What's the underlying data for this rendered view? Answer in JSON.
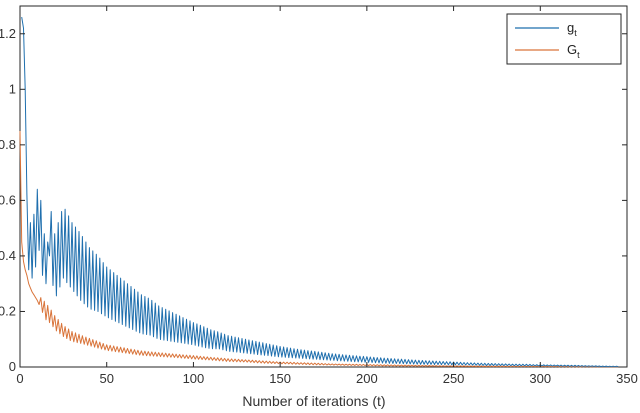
{
  "chart_data": {
    "type": "line",
    "xlabel": "Number of iterations (t)",
    "ylabel": "",
    "title": "",
    "xlim": [
      0,
      350
    ],
    "ylim": [
      0,
      1.3
    ],
    "xticks": [
      "0",
      "50",
      "100",
      "150",
      "200",
      "250",
      "300",
      "350"
    ],
    "yticks": [
      "0",
      "0.2",
      "0.4",
      "0.6",
      "0.8",
      "1",
      "1.2"
    ],
    "grid": false,
    "legend_position": "top-right",
    "series": [
      {
        "name": "g",
        "name_subscript": "t",
        "color": "#1f6fae",
        "x": [
          1,
          2,
          3,
          4,
          5,
          6,
          7,
          8,
          9,
          10,
          11,
          12,
          13,
          14,
          15,
          17,
          20,
          25,
          30,
          35,
          40,
          45,
          50,
          55,
          60,
          65,
          70,
          75,
          80,
          85,
          90,
          95,
          100,
          105,
          110,
          115,
          120,
          130,
          140,
          150,
          160,
          170,
          180,
          190,
          200,
          210,
          220,
          230,
          240,
          250,
          260,
          270,
          280,
          290,
          300,
          310,
          320,
          330,
          340,
          345
        ],
        "y": [
          1.26,
          1.22,
          1.0,
          0.62,
          0.35,
          0.52,
          0.32,
          0.55,
          0.36,
          0.64,
          0.42,
          0.6,
          0.33,
          0.48,
          0.3,
          0.5,
          0.36,
          0.45,
          0.4,
          0.36,
          0.32,
          0.3,
          0.27,
          0.25,
          0.23,
          0.21,
          0.19,
          0.18,
          0.16,
          0.15,
          0.14,
          0.13,
          0.12,
          0.11,
          0.1,
          0.095,
          0.085,
          0.075,
          0.065,
          0.055,
          0.048,
          0.042,
          0.036,
          0.031,
          0.027,
          0.023,
          0.02,
          0.017,
          0.015,
          0.013,
          0.011,
          0.009,
          0.008,
          0.007,
          0.006,
          0.005,
          0.004,
          0.003,
          0.002,
          0.002
        ],
        "osc_amp": [
          0.0,
          0.0,
          0.0,
          0.0,
          0.0,
          0.0,
          0.0,
          0.0,
          0.0,
          0.0,
          0.0,
          0.0,
          0.0,
          0.0,
          0.0,
          0.1,
          0.12,
          0.13,
          0.12,
          0.12,
          0.11,
          0.1,
          0.09,
          0.085,
          0.08,
          0.075,
          0.07,
          0.065,
          0.06,
          0.055,
          0.05,
          0.045,
          0.04,
          0.038,
          0.034,
          0.03,
          0.028,
          0.025,
          0.022,
          0.019,
          0.016,
          0.014,
          0.012,
          0.011,
          0.01,
          0.009,
          0.008,
          0.007,
          0.006,
          0.005,
          0.004,
          0.004,
          0.003,
          0.003,
          0.002,
          0.002,
          0.002,
          0.001,
          0.001,
          0.001
        ]
      },
      {
        "name": "G",
        "name_subscript": "t",
        "color": "#d9743a",
        "x": [
          0,
          1,
          2,
          3,
          4,
          5,
          7,
          10,
          12,
          15,
          18,
          20,
          25,
          30,
          35,
          40,
          45,
          50,
          60,
          70,
          80,
          90,
          100,
          110,
          120,
          130,
          140,
          150,
          160,
          170,
          180,
          200,
          220,
          250,
          280,
          300,
          320,
          345
        ],
        "y": [
          0.85,
          0.45,
          0.38,
          0.35,
          0.33,
          0.3,
          0.27,
          0.24,
          0.23,
          0.2,
          0.18,
          0.16,
          0.13,
          0.11,
          0.1,
          0.09,
          0.08,
          0.07,
          0.06,
          0.05,
          0.045,
          0.04,
          0.035,
          0.03,
          0.025,
          0.022,
          0.018,
          0.015,
          0.013,
          0.011,
          0.009,
          0.007,
          0.005,
          0.003,
          0.002,
          0.002,
          0.001,
          0.001
        ],
        "osc_amp": [
          0.0,
          0.0,
          0.0,
          0.0,
          0.0,
          0.0,
          0.0,
          0.0,
          0.02,
          0.03,
          0.025,
          0.025,
          0.02,
          0.018,
          0.015,
          0.013,
          0.012,
          0.01,
          0.009,
          0.008,
          0.007,
          0.006,
          0.006,
          0.005,
          0.005,
          0.004,
          0.004,
          0.003,
          0.003,
          0.003,
          0.002,
          0.002,
          0.002,
          0.001,
          0.001,
          0.001,
          0.001,
          0.0
        ]
      }
    ]
  }
}
